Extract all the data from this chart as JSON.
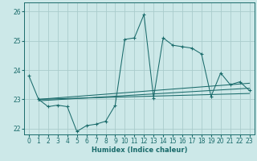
{
  "title": "",
  "xlabel": "Humidex (Indice chaleur)",
  "ylabel": "",
  "xlim": [
    -0.5,
    23.5
  ],
  "ylim": [
    21.8,
    26.3
  ],
  "bg_color": "#cce8e8",
  "grid_color": "#aacccc",
  "line_color": "#1a6b6b",
  "xticks": [
    0,
    1,
    2,
    3,
    4,
    5,
    6,
    7,
    8,
    9,
    10,
    11,
    12,
    13,
    14,
    15,
    16,
    17,
    18,
    19,
    20,
    21,
    22,
    23
  ],
  "yticks": [
    22,
    23,
    24,
    25,
    26
  ],
  "main_line": {
    "x": [
      0,
      1,
      2,
      3,
      4,
      5,
      6,
      7,
      8,
      9,
      10,
      11,
      12,
      13,
      14,
      15,
      16,
      17,
      18,
      19,
      20,
      21,
      22,
      23
    ],
    "y": [
      23.8,
      23.0,
      22.75,
      22.8,
      22.75,
      21.9,
      22.1,
      22.15,
      22.25,
      22.8,
      25.05,
      25.1,
      25.9,
      23.05,
      25.1,
      24.85,
      24.8,
      24.75,
      24.55,
      23.1,
      23.9,
      23.5,
      23.6,
      23.3
    ]
  },
  "trend_line1": {
    "x": [
      1,
      23
    ],
    "y": [
      23.0,
      23.2
    ]
  },
  "trend_line2": {
    "x": [
      1,
      23
    ],
    "y": [
      23.0,
      23.55
    ]
  },
  "trend_line3": {
    "x": [
      1,
      23
    ],
    "y": [
      22.95,
      23.38
    ]
  }
}
